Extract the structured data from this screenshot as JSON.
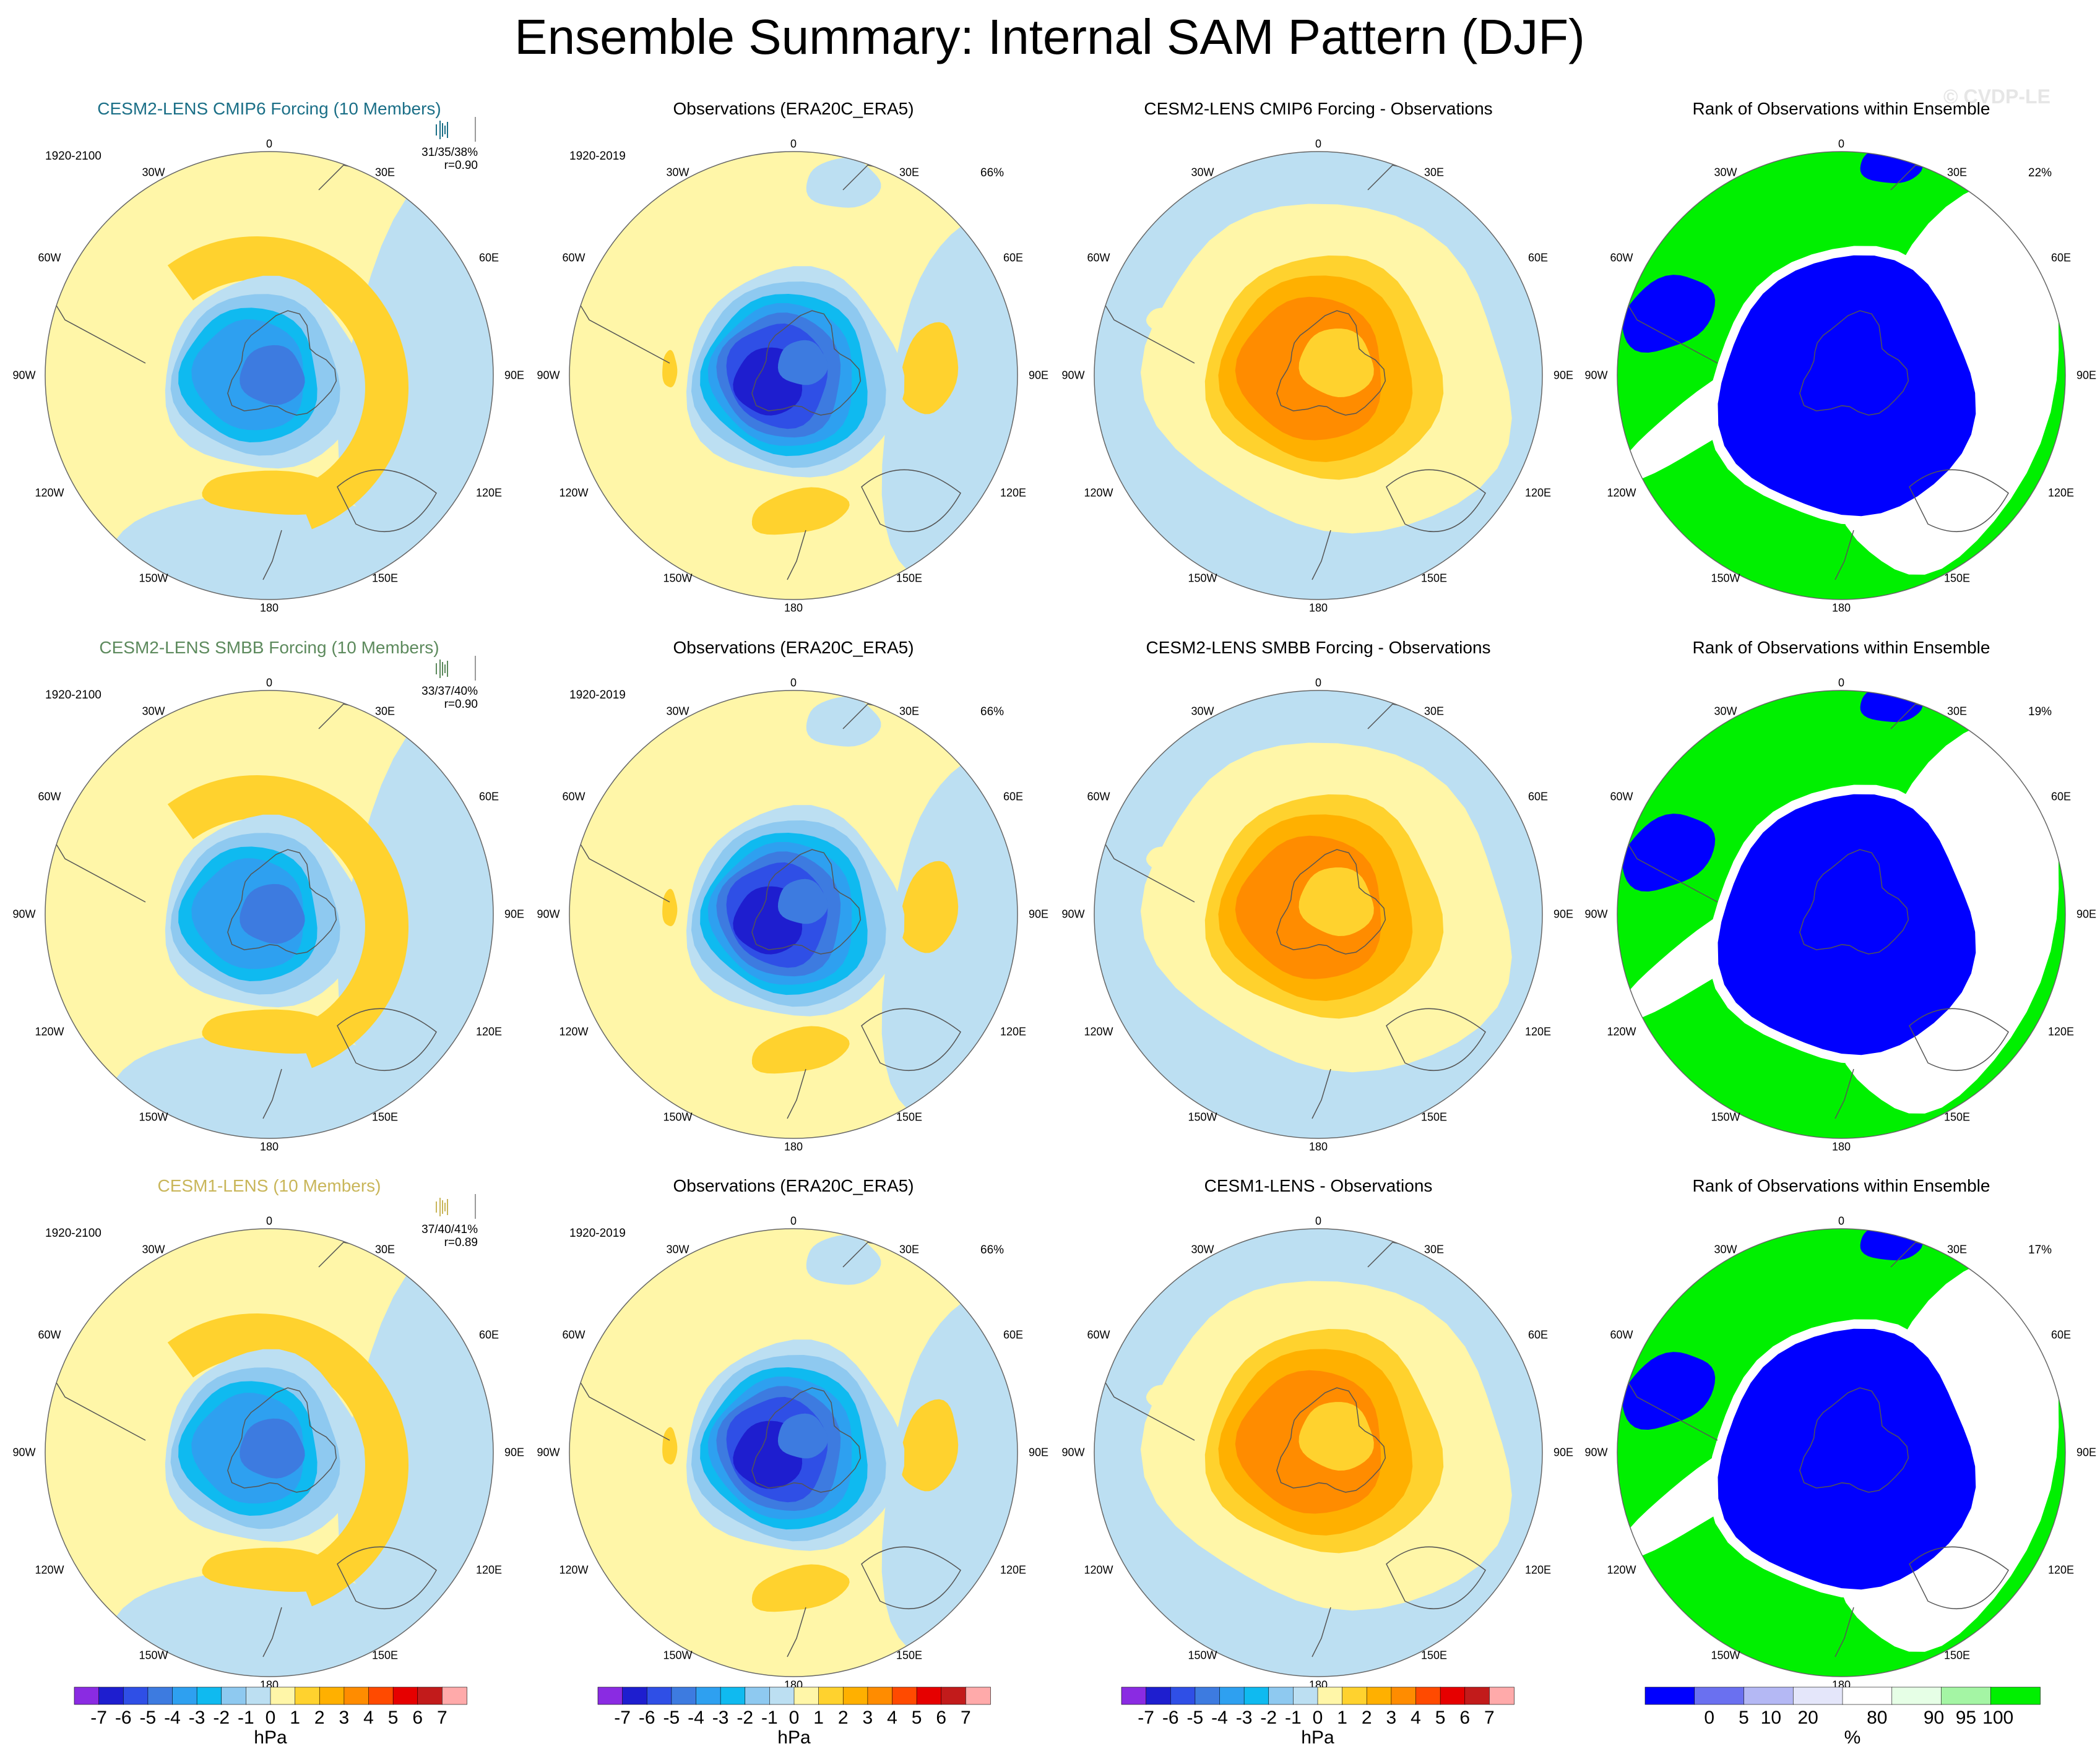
{
  "title": "Ensemble Summary: Internal SAM Pattern (DJF)",
  "watermark": "© CVDP-LE",
  "rows": [
    {
      "model": {
        "title": "CESM2-LENS CMIP6 Forcing (10 Members)",
        "title_color": "#1b6f87",
        "period": "1920-2100",
        "stat_pct": "31/35/38%",
        "stat_r": "r=0.90"
      },
      "obs": {
        "title": "Observations (ERA20C_ERA5)",
        "period": "1920-2019",
        "pct": "66%"
      },
      "diff": {
        "title": "CESM2-LENS CMIP6 Forcing - Observations"
      },
      "rank": {
        "title": "Rank of Observations within Ensemble",
        "pct": "22%"
      }
    },
    {
      "model": {
        "title": "CESM2-LENS SMBB Forcing (10 Members)",
        "title_color": "#5d8a5d",
        "period": "1920-2100",
        "stat_pct": "33/37/40%",
        "stat_r": "r=0.90"
      },
      "obs": {
        "title": "Observations (ERA20C_ERA5)",
        "period": "1920-2019",
        "pct": "66%"
      },
      "diff": {
        "title": "CESM2-LENS SMBB Forcing - Observations"
      },
      "rank": {
        "title": "Rank of Observations within Ensemble",
        "pct": "19%"
      }
    },
    {
      "model": {
        "title": "CESM1-LENS (10 Members)",
        "title_color": "#c9b65a",
        "period": "1920-2100",
        "stat_pct": "37/40/41%",
        "stat_r": "r=0.89"
      },
      "obs": {
        "title": "Observations (ERA20C_ERA5)",
        "period": "1920-2019",
        "pct": "66%"
      },
      "diff": {
        "title": "CESM1-LENS - Observations"
      },
      "rank": {
        "title": "Rank of Observations within Ensemble",
        "pct": "17%"
      }
    }
  ],
  "map_labels": {
    "top": "0",
    "bottom": "180",
    "upper_left": "30W",
    "upper_right": "30E",
    "left_upper": "60W",
    "right_upper": "60E",
    "left": "90W",
    "right": "90E",
    "left_lower": "120W",
    "right_lower": "120E",
    "lower_left": "150W",
    "lower_right": "150E"
  },
  "colorbar_hpa": {
    "units": "hPa",
    "ticks": [
      "-7",
      "-6",
      "-5",
      "-4",
      "-3",
      "-2",
      "-1",
      "0",
      "1",
      "2",
      "3",
      "4",
      "5",
      "6",
      "7"
    ],
    "colors": [
      "#8a2be2",
      "#1e1ecf",
      "#2f4fe6",
      "#3d7be0",
      "#2ea0f0",
      "#0fbaf0",
      "#8ec9f0",
      "#bcdff2",
      "#fff6a8",
      "#ffd22e",
      "#ffb000",
      "#ff8c00",
      "#ff4a00",
      "#e60000",
      "#c21b1b",
      "#ffaaaa"
    ]
  },
  "colorbar_rank": {
    "units": "%",
    "ticks": [
      "0",
      "5",
      "10",
      "20",
      "80",
      "90",
      "95",
      "100"
    ],
    "colors": [
      "#0000ff",
      "#6a70f0",
      "#b4b8f4",
      "#e4e6fa",
      "#ffffff",
      "#e6ffe6",
      "#a4f5a4",
      "#00f000"
    ]
  }
}
